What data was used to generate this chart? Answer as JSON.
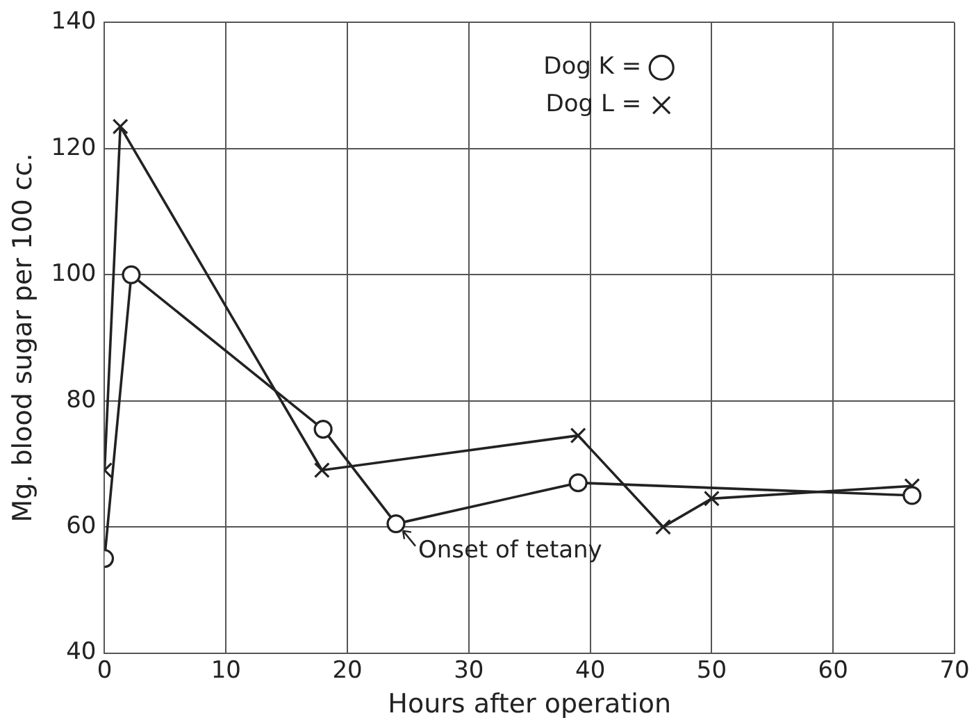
{
  "chart_data": {
    "type": "line",
    "xlabel": "Hours after operation",
    "ylabel": "Mg. blood sugar per 100 cc.",
    "xlim": [
      0,
      70
    ],
    "xticks": [
      0,
      10,
      20,
      30,
      40,
      50,
      60,
      70
    ],
    "ylim": [
      40,
      140
    ],
    "yticks": [
      40,
      60,
      80,
      100,
      120,
      140
    ],
    "grid": true,
    "legend": "top right",
    "line_style": "solid",
    "series": [
      {
        "name": "Dog K =",
        "color": "#222222",
        "marker": "circle",
        "x": [
          0,
          2.2,
          18,
          24,
          39,
          66.5
        ],
        "values": [
          55,
          100,
          75.5,
          60.5,
          67,
          65
        ]
      },
      {
        "name": "Dog L =",
        "color": "#222222",
        "marker": "cross",
        "x": [
          0,
          1.3,
          17.9,
          39,
          46,
          50,
          66.5
        ],
        "values": [
          69,
          123.5,
          69,
          74.5,
          60,
          64.5,
          66.5
        ]
      }
    ],
    "annotations": [
      {
        "text": "Onset of tetany",
        "x": 24,
        "y": 60.5
      }
    ]
  }
}
